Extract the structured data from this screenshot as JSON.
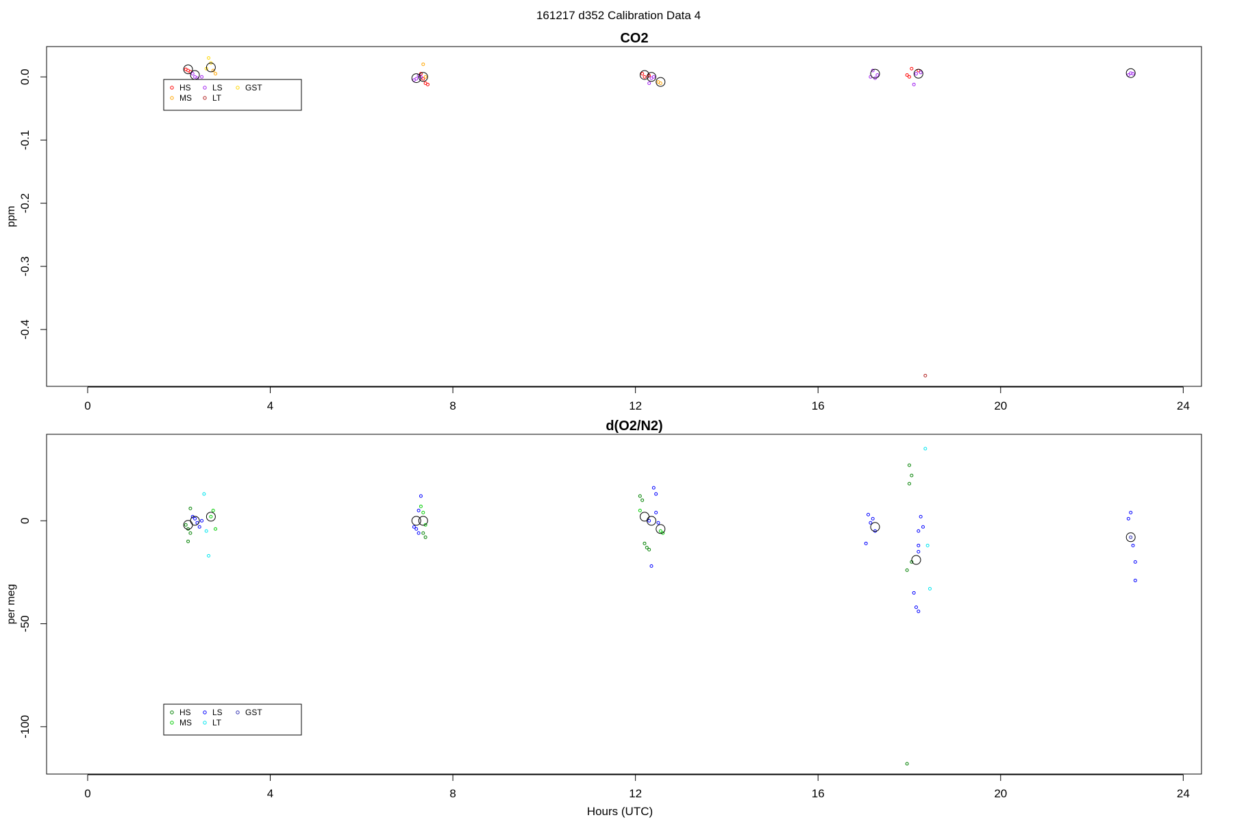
{
  "figure": {
    "main_title": "161217   d352   Calibration Data 4",
    "xlabel": "Hours (UTC)"
  },
  "colors": {
    "top": {
      "HS": "#ff0000",
      "MS": "#ffa500",
      "LS": "#a020f0",
      "LT": "#b22222",
      "GST": "#ffd700"
    },
    "bottom": {
      "HS": "#008000",
      "MS": "#00cc00",
      "LS": "#0000ff",
      "LT": "#00e5ee",
      "GST": "#3030b0"
    }
  },
  "chart_data": [
    {
      "type": "scatter",
      "title": "CO2",
      "ylabel": "ppm",
      "xlim": [
        -0.9,
        24.4
      ],
      "ylim": [
        -0.49,
        0.048
      ],
      "xticks": [
        0,
        4,
        8,
        12,
        16,
        20,
        24
      ],
      "xtick_labels": [
        "0",
        "4",
        "8",
        "12",
        "16",
        "20",
        "24"
      ],
      "yticks": [
        0.0,
        -0.1,
        -0.2,
        -0.3,
        -0.4
      ],
      "ytick_labels": [
        "0.0",
        "-0.1",
        "-0.2",
        "-0.3",
        "-0.4"
      ],
      "legend": {
        "position": "top-left",
        "entries": [
          "HS",
          "MS",
          "LS",
          "LT",
          "GST"
        ]
      },
      "series": [
        {
          "name": "HS",
          "color_key": "HS",
          "points": [
            [
              2.15,
              0.012
            ],
            [
              2.2,
              0.01
            ],
            [
              2.25,
              0.008
            ],
            [
              7.35,
              -0.003
            ],
            [
              7.4,
              -0.01
            ],
            [
              7.45,
              -0.012
            ],
            [
              7.3,
              0.005
            ],
            [
              12.15,
              0.005
            ],
            [
              12.2,
              0.0
            ],
            [
              12.3,
              0.002
            ],
            [
              17.95,
              0.003
            ],
            [
              18.0,
              0.0
            ],
            [
              18.05,
              0.013
            ],
            [
              18.2,
              0.01
            ]
          ]
        },
        {
          "name": "MS",
          "color_key": "MS",
          "points": [
            [
              2.75,
              0.01
            ],
            [
              2.8,
              0.005
            ],
            [
              7.35,
              0.02
            ],
            [
              7.4,
              0.0
            ],
            [
              12.5,
              -0.008
            ],
            [
              12.55,
              -0.01
            ]
          ]
        },
        {
          "name": "LS",
          "color_key": "LS",
          "points": [
            [
              2.3,
              0.005
            ],
            [
              2.35,
              0.0
            ],
            [
              2.4,
              -0.002
            ],
            [
              2.5,
              0.0
            ],
            [
              7.15,
              -0.005
            ],
            [
              7.2,
              -0.003
            ],
            [
              7.25,
              0.002
            ],
            [
              7.3,
              0.0
            ],
            [
              12.3,
              -0.01
            ],
            [
              12.35,
              -0.002
            ],
            [
              12.4,
              0.0
            ],
            [
              17.15,
              0.0
            ],
            [
              17.2,
              0.01
            ],
            [
              17.25,
              -0.002
            ],
            [
              17.3,
              0.003
            ],
            [
              18.1,
              -0.012
            ],
            [
              18.15,
              0.005
            ],
            [
              18.25,
              0.007
            ],
            [
              22.8,
              0.003
            ],
            [
              22.85,
              0.006
            ],
            [
              22.9,
              0.005
            ]
          ]
        },
        {
          "name": "LT",
          "color_key": "LT",
          "points": [
            [
              18.35,
              -0.473
            ]
          ]
        },
        {
          "name": "GST",
          "color_key": "GST",
          "points": [
            [
              2.6,
              0.013
            ],
            [
              2.65,
              0.03
            ],
            [
              2.7,
              0.022
            ]
          ]
        },
        {
          "name": "mean",
          "color_key": "mean",
          "marker": "large-circle",
          "points": [
            [
              2.2,
              0.012
            ],
            [
              2.35,
              0.003
            ],
            [
              2.7,
              0.015
            ],
            [
              7.2,
              -0.002
            ],
            [
              7.35,
              0.0
            ],
            [
              12.2,
              0.003
            ],
            [
              12.35,
              0.0
            ],
            [
              12.55,
              -0.008
            ],
            [
              17.25,
              0.005
            ],
            [
              18.2,
              0.005
            ],
            [
              22.85,
              0.006
            ]
          ]
        }
      ]
    },
    {
      "type": "scatter",
      "title": "d(O2/N2)",
      "ylabel": "per meg",
      "xlim": [
        -0.9,
        24.4
      ],
      "ylim": [
        -123,
        42
      ],
      "xticks": [
        0,
        4,
        8,
        12,
        16,
        20,
        24
      ],
      "xtick_labels": [
        "0",
        "4",
        "8",
        "12",
        "16",
        "20",
        "24"
      ],
      "yticks": [
        0,
        -50,
        -100
      ],
      "ytick_labels": [
        "0",
        "-50",
        "-100"
      ],
      "legend": {
        "position": "bottom-left",
        "entries": [
          "HS",
          "MS",
          "LS",
          "LT",
          "GST"
        ]
      },
      "series": [
        {
          "name": "HS",
          "color_key": "HS",
          "points": [
            [
              2.15,
              -2
            ],
            [
              2.2,
              -4
            ],
            [
              2.25,
              -6
            ],
            [
              2.2,
              -10
            ],
            [
              2.25,
              6
            ],
            [
              7.35,
              -6
            ],
            [
              7.4,
              -8
            ],
            [
              12.1,
              12
            ],
            [
              12.15,
              10
            ],
            [
              12.2,
              -11
            ],
            [
              12.25,
              -13
            ],
            [
              12.3,
              -14
            ],
            [
              17.95,
              -24
            ],
            [
              18.0,
              27
            ],
            [
              18.05,
              22
            ],
            [
              18.0,
              18
            ],
            [
              18.05,
              -20
            ],
            [
              17.95,
              -118
            ]
          ]
        },
        {
          "name": "MS",
          "color_key": "MS",
          "points": [
            [
              2.7,
              2
            ],
            [
              2.75,
              5
            ],
            [
              2.8,
              -4
            ],
            [
              7.3,
              7
            ],
            [
              7.35,
              4
            ],
            [
              7.4,
              -2
            ],
            [
              12.1,
              5
            ],
            [
              12.55,
              -5
            ],
            [
              12.6,
              -6
            ]
          ]
        },
        {
          "name": "LS",
          "color_key": "LS",
          "points": [
            [
              2.3,
              2
            ],
            [
              2.35,
              1
            ],
            [
              2.4,
              -1
            ],
            [
              2.45,
              -3
            ],
            [
              2.5,
              0
            ],
            [
              7.15,
              -3
            ],
            [
              7.2,
              -4
            ],
            [
              7.25,
              -6
            ],
            [
              7.25,
              5
            ],
            [
              7.3,
              12
            ],
            [
              12.3,
              0
            ],
            [
              12.35,
              -22
            ],
            [
              12.4,
              16
            ],
            [
              12.45,
              13
            ],
            [
              12.45,
              4
            ],
            [
              12.5,
              -1
            ],
            [
              17.1,
              3
            ],
            [
              17.15,
              -1
            ],
            [
              17.2,
              1
            ],
            [
              17.25,
              -5
            ],
            [
              17.05,
              -11
            ],
            [
              18.1,
              -35
            ],
            [
              18.15,
              -42
            ],
            [
              18.2,
              -44
            ],
            [
              18.2,
              -12
            ],
            [
              18.25,
              2
            ],
            [
              18.3,
              -3
            ],
            [
              18.2,
              -5
            ],
            [
              18.2,
              -15
            ],
            [
              22.8,
              1
            ],
            [
              22.85,
              4
            ],
            [
              22.9,
              -12
            ],
            [
              22.95,
              -20
            ],
            [
              22.95,
              -29
            ]
          ]
        },
        {
          "name": "LT",
          "color_key": "LT",
          "points": [
            [
              2.55,
              13
            ],
            [
              2.6,
              -5
            ],
            [
              2.65,
              -17
            ],
            [
              18.35,
              35
            ],
            [
              18.4,
              -12
            ],
            [
              18.45,
              -33
            ]
          ]
        },
        {
          "name": "GST",
          "color_key": "GST",
          "points": [
            [
              22.85,
              -8
            ]
          ]
        },
        {
          "name": "mean",
          "color_key": "mean",
          "marker": "large-circle",
          "points": [
            [
              2.2,
              -2
            ],
            [
              2.35,
              0
            ],
            [
              2.7,
              2
            ],
            [
              7.2,
              0
            ],
            [
              7.35,
              0
            ],
            [
              12.2,
              2
            ],
            [
              12.35,
              0
            ],
            [
              12.55,
              -4
            ],
            [
              17.25,
              -3
            ],
            [
              18.15,
              -19
            ],
            [
              22.85,
              -8
            ]
          ]
        }
      ]
    }
  ]
}
